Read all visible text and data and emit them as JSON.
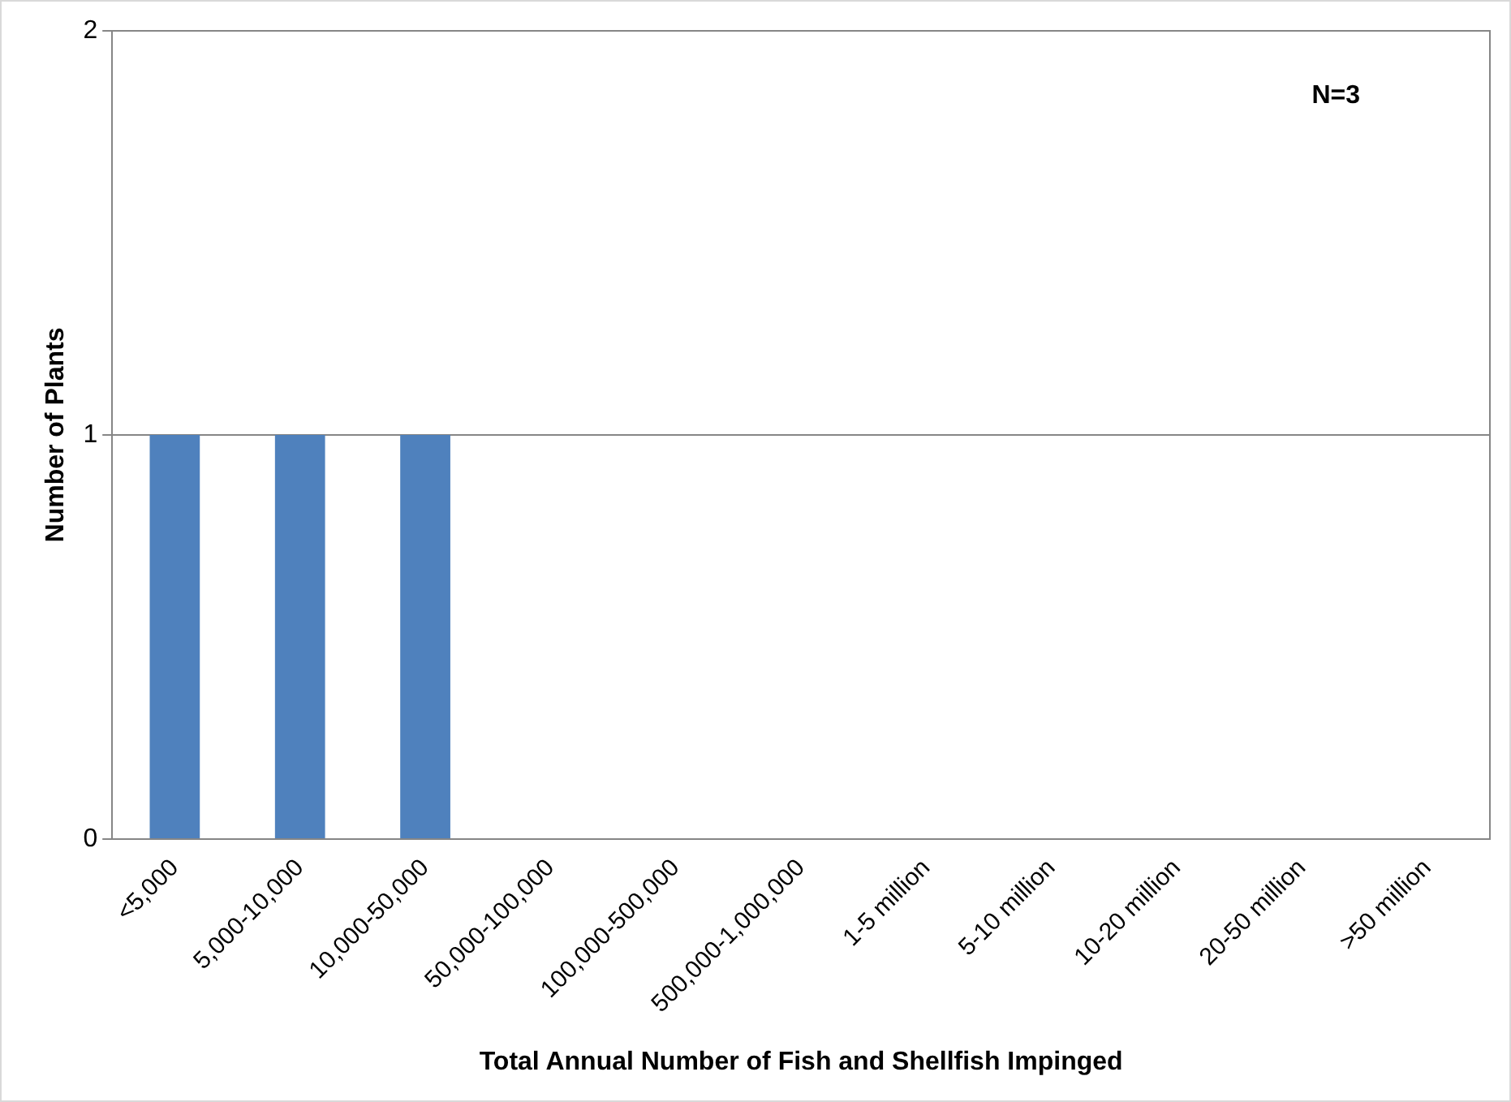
{
  "chart_data": {
    "type": "bar",
    "xlabel": "Total Annual Number of Fish and Shellfish Impinged",
    "ylabel": "Number of Plants",
    "categories": [
      "<5,000",
      "5,000-10,000",
      "10,000-50,000",
      "50,000-100,000",
      "100,000-500,000",
      "500,000-1,000,000",
      "1-5 million",
      "5-10 million",
      "10-20 million",
      "20-50 million",
      ">50 million"
    ],
    "values": [
      1,
      1,
      1,
      0,
      0,
      0,
      0,
      0,
      0,
      0,
      0
    ],
    "color": "#4f81bd",
    "ylim": [
      0,
      2
    ],
    "yticks": [
      0,
      1,
      2
    ],
    "grid": "y",
    "legend": false,
    "annotations": [
      "N=3"
    ]
  }
}
